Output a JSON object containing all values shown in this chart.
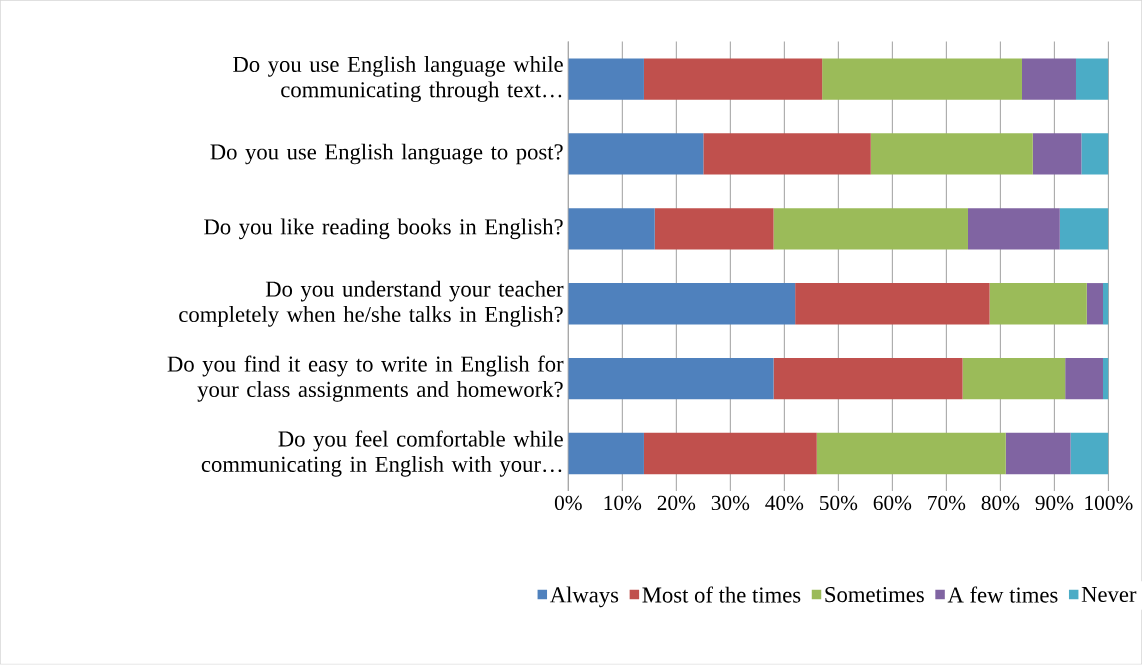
{
  "chart_data": {
    "type": "bar",
    "orientation": "horizontal",
    "stacked": true,
    "categories": [
      "Do you use English language while communicating through text…",
      "Do you use English language to post?",
      "Do you like reading books in English?",
      "Do you understand your teacher completely when he/she talks in English?",
      "Do you find it easy to write in English for your class assignments and homework?",
      "Do you feel comfortable while communicating in English with your…"
    ],
    "series": [
      {
        "name": "Always",
        "color": "#4f81bd",
        "values": [
          14,
          25,
          16,
          42,
          38,
          14
        ]
      },
      {
        "name": "Most of the times",
        "color": "#c0504d",
        "values": [
          33,
          31,
          22,
          36,
          35,
          32
        ]
      },
      {
        "name": "Sometimes",
        "color": "#9bbb59",
        "values": [
          37,
          30,
          36,
          18,
          19,
          35
        ]
      },
      {
        "name": "A few times",
        "color": "#8064a2",
        "values": [
          10,
          9,
          17,
          3,
          7,
          12
        ]
      },
      {
        "name": "Never",
        "color": "#4bacc6",
        "values": [
          6,
          5,
          9,
          1,
          1,
          7
        ]
      }
    ],
    "xlim": [
      0,
      100
    ],
    "xticks": [
      {
        "value": 0,
        "label": "0%"
      },
      {
        "value": 10,
        "label": "10%"
      },
      {
        "value": 20,
        "label": "20%"
      },
      {
        "value": 30,
        "label": "30%"
      },
      {
        "value": 40,
        "label": "40%"
      },
      {
        "value": 50,
        "label": "50%"
      },
      {
        "value": 60,
        "label": "60%"
      },
      {
        "value": 70,
        "label": "70%"
      },
      {
        "value": 80,
        "label": "80%"
      },
      {
        "value": 90,
        "label": "90%"
      },
      {
        "value": 100,
        "label": "100%"
      }
    ],
    "grid": "x",
    "legend": "bottom"
  }
}
